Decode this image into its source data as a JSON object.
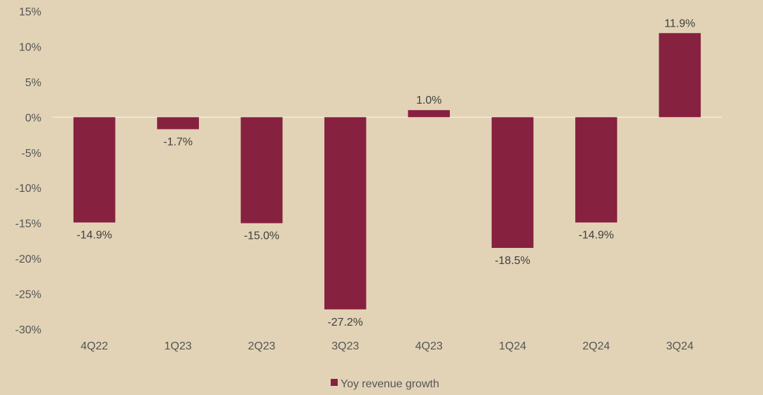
{
  "chart_data": {
    "type": "bar",
    "categories": [
      "4Q22",
      "1Q23",
      "2Q23",
      "3Q23",
      "4Q23",
      "1Q24",
      "2Q24",
      "3Q24"
    ],
    "series": [
      {
        "name": "Yoy revenue growth",
        "values": [
          -14.9,
          -1.7,
          -15.0,
          -27.2,
          1.0,
          -18.5,
          -14.9,
          11.9
        ],
        "data_labels": [
          "-14.9%",
          "-1.7%",
          "-15.0%",
          "-27.2%",
          "1.0%",
          "-18.5%",
          "-14.9%",
          "11.9%"
        ]
      }
    ],
    "y_ticks": [
      15,
      10,
      5,
      0,
      -5,
      -10,
      -15,
      -20,
      -25,
      -30
    ],
    "y_tick_labels": [
      "15%",
      "10%",
      "5%",
      "0%",
      "-5%",
      "-10%",
      "-15%",
      "-20%",
      "-25%",
      "-30%"
    ],
    "ylim": [
      -30,
      15
    ],
    "grid": false,
    "legend_position": "bottom-center",
    "colors": {
      "bar": "#862140",
      "background": "#e2d3b6",
      "zero_line": "#f2ece0"
    }
  }
}
